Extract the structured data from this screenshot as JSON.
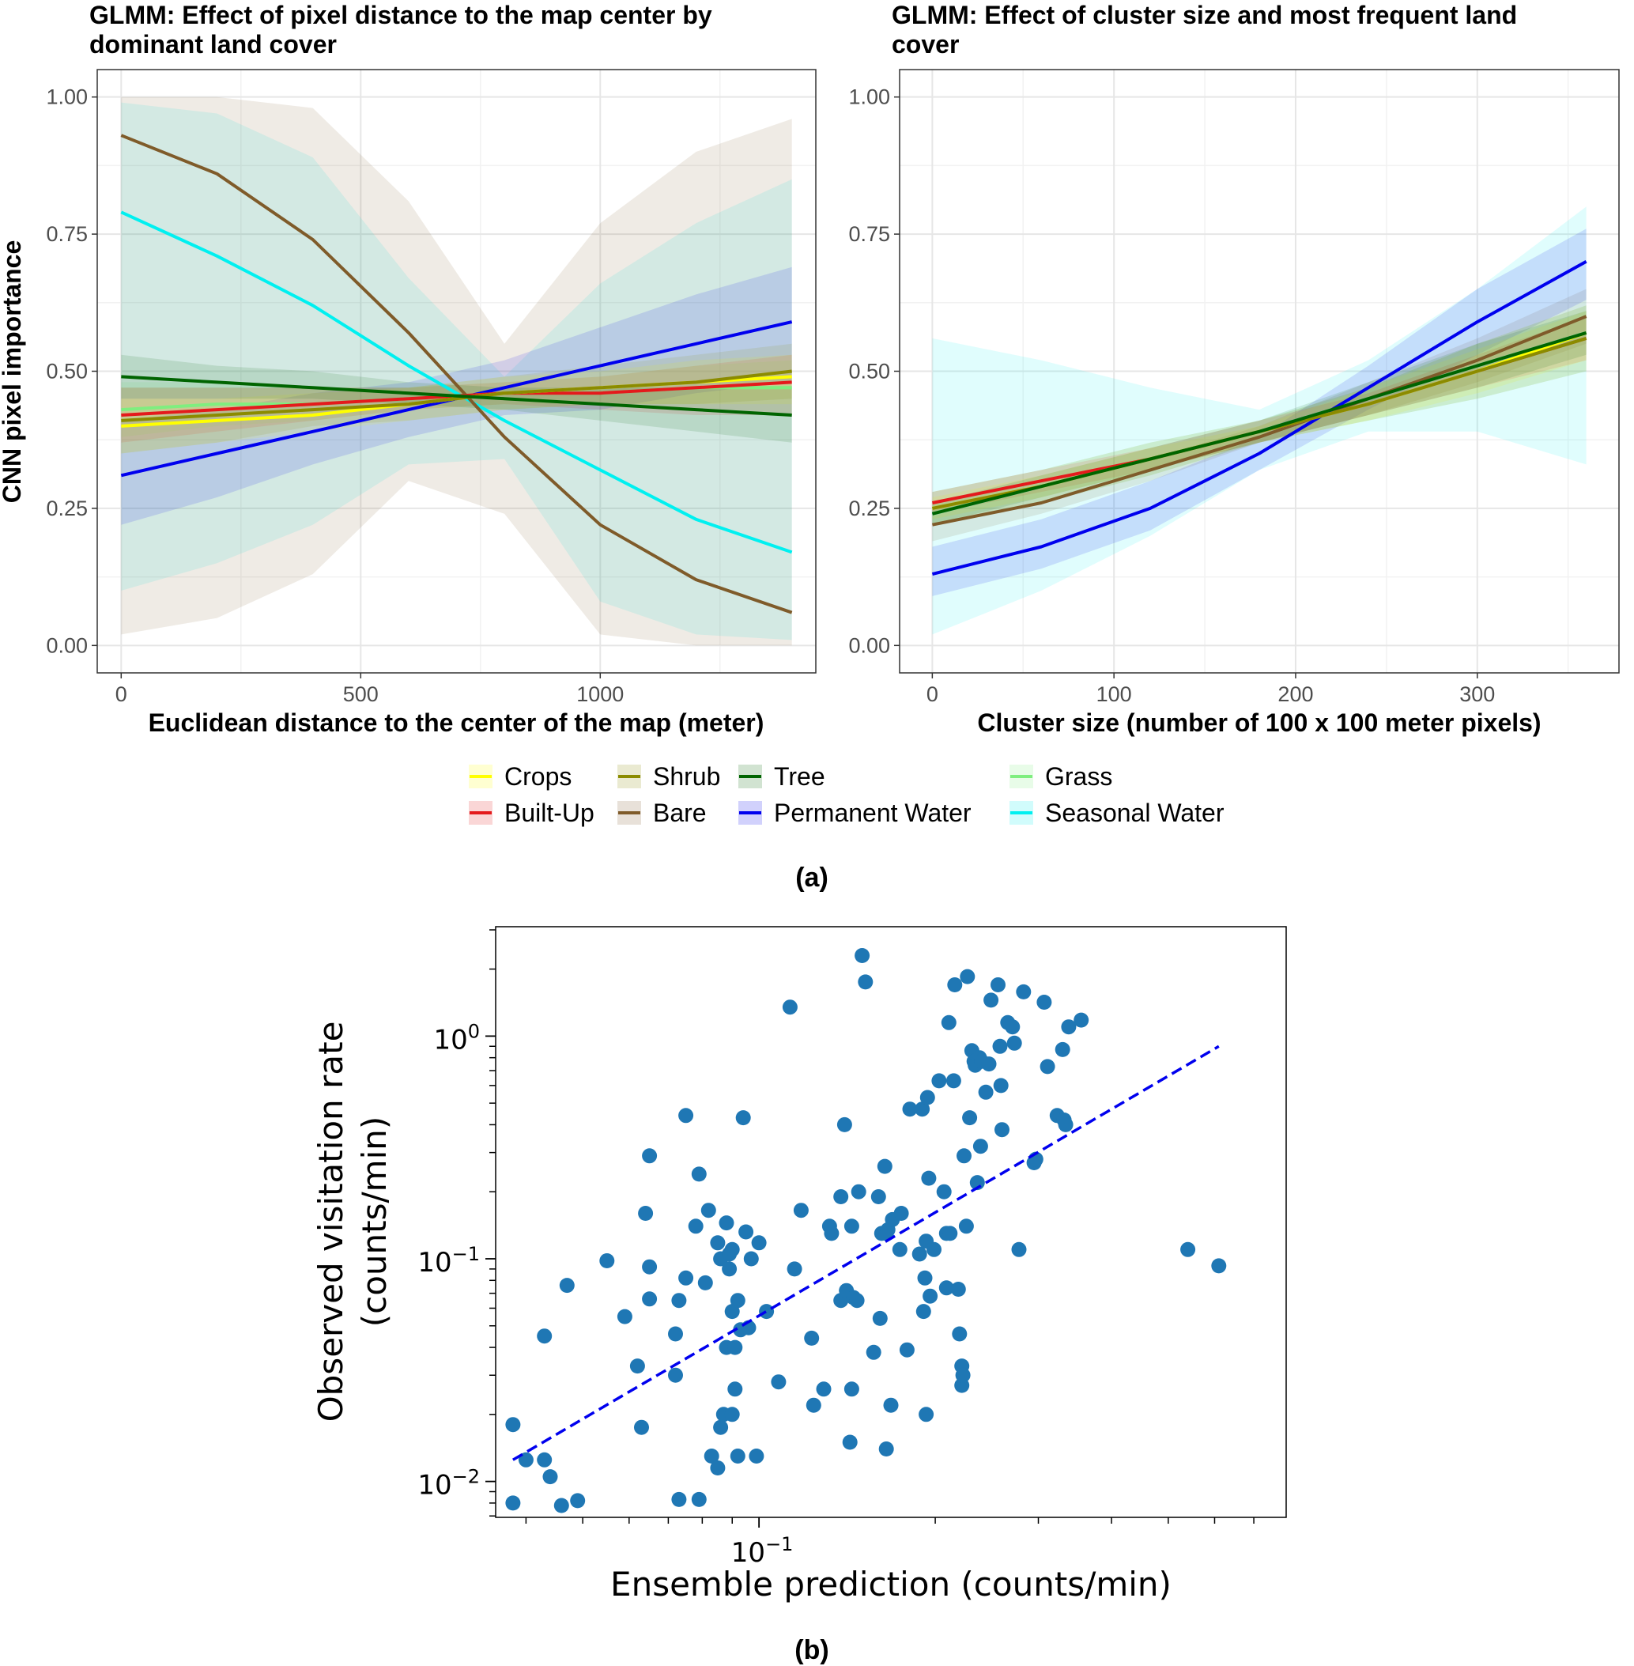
{
  "figure": {
    "caption_a": "(a)",
    "caption_b": "(b)",
    "legend": [
      {
        "name": "Crops",
        "color": "#ffff00"
      },
      {
        "name": "Shrub",
        "color": "#8b8b00"
      },
      {
        "name": "Tree",
        "color": "#006400"
      },
      {
        "name": "Grass",
        "color": "#7fee7f"
      },
      {
        "name": "Built-Up",
        "color": "#e41a1c"
      },
      {
        "name": "Bare",
        "color": "#7f5b2a"
      },
      {
        "name": "Permanent Water",
        "color": "#0000ee"
      },
      {
        "name": "Seasonal Water",
        "color": "#00f0f0"
      }
    ]
  },
  "chart_data": [
    {
      "type": "line",
      "title_line1": "GLMM: Effect of pixel distance to the map center by",
      "title_line2": "dominant land cover",
      "xlabel": "Euclidean distance to the center of the map (meter)",
      "ylabel": "CNN pixel importance",
      "xlim": [
        -50,
        1450
      ],
      "ylim": [
        -0.05,
        1.05
      ],
      "x_ticks": [
        0,
        500,
        1000
      ],
      "x_tick_labels": [
        "0",
        "500",
        "1000"
      ],
      "y_ticks": [
        0,
        0.25,
        0.5,
        0.75,
        1
      ],
      "y_tick_labels": [
        "0.00",
        "0.25",
        "0.50",
        "0.75",
        "1.00"
      ],
      "grid": true,
      "x": [
        0,
        200,
        400,
        600,
        800,
        1000,
        1200,
        1400
      ],
      "series": [
        {
          "name": "Crops",
          "values": [
            0.4,
            0.41,
            0.42,
            0.44,
            0.46,
            0.47,
            0.48,
            0.49
          ],
          "lower": [
            0.35,
            0.37,
            0.39,
            0.41,
            0.43,
            0.44,
            0.44,
            0.44
          ],
          "upper": [
            0.45,
            0.45,
            0.46,
            0.47,
            0.49,
            0.5,
            0.52,
            0.53
          ]
        },
        {
          "name": "Shrub",
          "values": [
            0.41,
            0.42,
            0.43,
            0.44,
            0.46,
            0.47,
            0.48,
            0.5
          ],
          "lower": [
            0.35,
            0.37,
            0.4,
            0.41,
            0.43,
            0.44,
            0.44,
            0.45
          ],
          "upper": [
            0.47,
            0.47,
            0.47,
            0.47,
            0.49,
            0.51,
            0.53,
            0.55
          ]
        },
        {
          "name": "Tree",
          "values": [
            0.49,
            0.48,
            0.47,
            0.46,
            0.45,
            0.44,
            0.43,
            0.42
          ],
          "lower": [
            0.45,
            0.45,
            0.45,
            0.44,
            0.43,
            0.41,
            0.39,
            0.37
          ],
          "upper": [
            0.53,
            0.51,
            0.5,
            0.48,
            0.47,
            0.47,
            0.47,
            0.47
          ]
        },
        {
          "name": "Grass",
          "values": [
            0.43,
            0.44,
            0.44,
            0.45,
            0.46,
            0.46,
            0.47,
            0.47
          ],
          "lower": [
            0.38,
            0.4,
            0.41,
            0.43,
            0.44,
            0.44,
            0.43,
            0.42
          ],
          "upper": [
            0.48,
            0.48,
            0.47,
            0.47,
            0.48,
            0.49,
            0.51,
            0.52
          ]
        },
        {
          "name": "Built-Up",
          "values": [
            0.42,
            0.43,
            0.44,
            0.45,
            0.46,
            0.46,
            0.47,
            0.48
          ],
          "lower": [
            0.37,
            0.39,
            0.41,
            0.43,
            0.44,
            0.43,
            0.42,
            0.42
          ],
          "upper": [
            0.47,
            0.47,
            0.47,
            0.47,
            0.48,
            0.49,
            0.51,
            0.53
          ]
        },
        {
          "name": "Bare",
          "values": [
            0.93,
            0.86,
            0.74,
            0.57,
            0.38,
            0.22,
            0.12,
            0.06
          ],
          "lower": [
            0.02,
            0.05,
            0.13,
            0.3,
            0.24,
            0.02,
            0.0,
            0.0
          ],
          "upper": [
            1.0,
            1.0,
            0.98,
            0.81,
            0.55,
            0.77,
            0.9,
            0.96
          ]
        },
        {
          "name": "Permanent Water",
          "values": [
            0.31,
            0.35,
            0.39,
            0.43,
            0.47,
            0.51,
            0.55,
            0.59
          ],
          "lower": [
            0.22,
            0.27,
            0.33,
            0.38,
            0.42,
            0.43,
            0.46,
            0.48
          ],
          "upper": [
            0.41,
            0.43,
            0.46,
            0.48,
            0.52,
            0.58,
            0.64,
            0.69
          ]
        },
        {
          "name": "Seasonal Water",
          "values": [
            0.79,
            0.71,
            0.62,
            0.51,
            0.41,
            0.32,
            0.23,
            0.17
          ],
          "lower": [
            0.1,
            0.15,
            0.22,
            0.33,
            0.34,
            0.08,
            0.02,
            0.01
          ],
          "upper": [
            0.99,
            0.97,
            0.89,
            0.67,
            0.49,
            0.66,
            0.77,
            0.85
          ]
        }
      ]
    },
    {
      "type": "line",
      "title_line1": "GLMM: Effect of cluster size and most frequent land",
      "title_line2": "cover",
      "xlabel": "Cluster size (number of 100 x 100 meter pixels)",
      "ylabel": "",
      "xlim": [
        -18,
        378
      ],
      "ylim": [
        -0.05,
        1.05
      ],
      "x_ticks": [
        0,
        100,
        200,
        300
      ],
      "x_tick_labels": [
        "0",
        "100",
        "200",
        "300"
      ],
      "y_ticks": [
        0,
        0.25,
        0.5,
        0.75,
        1
      ],
      "y_tick_labels": [
        "0.00",
        "0.25",
        "0.50",
        "0.75",
        "1.00"
      ],
      "grid": true,
      "x": [
        0,
        60,
        120,
        180,
        240,
        300,
        360
      ],
      "series": [
        {
          "name": "Crops",
          "values": [
            0.25,
            0.29,
            0.34,
            0.39,
            0.44,
            0.5,
            0.57
          ],
          "lower": [
            0.23,
            0.27,
            0.32,
            0.37,
            0.41,
            0.46,
            0.52
          ],
          "upper": [
            0.27,
            0.31,
            0.36,
            0.4,
            0.47,
            0.54,
            0.61
          ]
        },
        {
          "name": "Shrub",
          "values": [
            0.25,
            0.29,
            0.34,
            0.39,
            0.44,
            0.5,
            0.56
          ],
          "lower": [
            0.22,
            0.26,
            0.31,
            0.37,
            0.41,
            0.45,
            0.5
          ],
          "upper": [
            0.28,
            0.32,
            0.37,
            0.41,
            0.47,
            0.55,
            0.62
          ]
        },
        {
          "name": "Tree",
          "values": [
            0.24,
            0.29,
            0.34,
            0.39,
            0.45,
            0.51,
            0.57
          ],
          "lower": [
            0.22,
            0.27,
            0.32,
            0.37,
            0.42,
            0.47,
            0.53
          ],
          "upper": [
            0.26,
            0.31,
            0.36,
            0.41,
            0.48,
            0.55,
            0.61
          ]
        },
        {
          "name": "Grass",
          "values": [
            0.25,
            0.29,
            0.34,
            0.39,
            0.44,
            0.5,
            0.56
          ],
          "lower": [
            0.22,
            0.26,
            0.31,
            0.37,
            0.41,
            0.45,
            0.5
          ],
          "upper": [
            0.28,
            0.32,
            0.37,
            0.41,
            0.47,
            0.55,
            0.62
          ]
        },
        {
          "name": "Built-Up",
          "values": [
            0.26,
            0.3,
            0.34,
            0.39,
            0.44,
            0.5,
            0.56
          ],
          "lower": [
            0.24,
            0.28,
            0.32,
            0.37,
            0.42,
            0.47,
            0.52
          ],
          "upper": [
            0.28,
            0.32,
            0.36,
            0.41,
            0.46,
            0.53,
            0.6
          ]
        },
        {
          "name": "Bare",
          "values": [
            0.22,
            0.26,
            0.32,
            0.38,
            0.45,
            0.52,
            0.6
          ],
          "lower": [
            0.19,
            0.24,
            0.3,
            0.37,
            0.42,
            0.48,
            0.55
          ],
          "upper": [
            0.25,
            0.29,
            0.34,
            0.4,
            0.48,
            0.56,
            0.65
          ]
        },
        {
          "name": "Permanent Water",
          "values": [
            0.13,
            0.18,
            0.25,
            0.35,
            0.47,
            0.59,
            0.7
          ],
          "lower": [
            0.09,
            0.14,
            0.21,
            0.32,
            0.43,
            0.53,
            0.63
          ],
          "upper": [
            0.18,
            0.23,
            0.3,
            0.38,
            0.51,
            0.65,
            0.76
          ]
        },
        {
          "name": "Seasonal Water",
          "values": [
            0.24,
            0.29,
            0.34,
            0.39,
            0.45,
            0.51,
            0.57
          ],
          "lower": [
            0.02,
            0.1,
            0.2,
            0.32,
            0.39,
            0.39,
            0.33
          ],
          "upper": [
            0.56,
            0.52,
            0.47,
            0.43,
            0.52,
            0.65,
            0.8
          ]
        }
      ]
    },
    {
      "type": "scatter",
      "xlabel": "Ensemble prediction (counts/min)",
      "ylabel_line1": "Observed visitation rate",
      "ylabel_line2": "(counts/min)",
      "x_scale": "log",
      "y_scale": "log",
      "xlim": [
        0.0355,
        0.795
      ],
      "ylim": [
        0.0069,
        3.1
      ],
      "x_ticks": [
        0.1
      ],
      "x_tick_labels": [
        "10^−1"
      ],
      "y_ticks": [
        0.01,
        0.1,
        1
      ],
      "y_tick_labels": [
        "10^−2",
        "10^−1",
        "10^0"
      ],
      "grid": false,
      "color": "#1f77b4",
      "fit_line": {
        "x": [
          0.038,
          0.61
        ],
        "y": [
          0.0125,
          0.9
        ],
        "color": "#0000ee",
        "style": "dashed"
      },
      "points": [
        [
          0.038,
          0.018
        ],
        [
          0.038,
          0.008
        ],
        [
          0.04,
          0.0125
        ],
        [
          0.043,
          0.045
        ],
        [
          0.043,
          0.0125
        ],
        [
          0.044,
          0.0105
        ],
        [
          0.046,
          0.0078
        ],
        [
          0.047,
          0.076
        ],
        [
          0.049,
          0.0082
        ],
        [
          0.055,
          0.098
        ],
        [
          0.059,
          0.055
        ],
        [
          0.062,
          0.033
        ],
        [
          0.063,
          0.0175
        ],
        [
          0.064,
          0.16
        ],
        [
          0.065,
          0.29
        ],
        [
          0.065,
          0.092
        ],
        [
          0.065,
          0.066
        ],
        [
          0.072,
          0.03
        ],
        [
          0.072,
          0.046
        ],
        [
          0.073,
          0.0083
        ],
        [
          0.073,
          0.065
        ],
        [
          0.075,
          0.44
        ],
        [
          0.075,
          0.082
        ],
        [
          0.078,
          0.14
        ],
        [
          0.079,
          0.24
        ],
        [
          0.079,
          0.0083
        ],
        [
          0.081,
          0.078
        ],
        [
          0.082,
          0.165
        ],
        [
          0.083,
          0.013
        ],
        [
          0.085,
          0.118
        ],
        [
          0.085,
          0.0115
        ],
        [
          0.086,
          0.0175
        ],
        [
          0.086,
          0.1
        ],
        [
          0.087,
          0.02
        ],
        [
          0.088,
          0.04
        ],
        [
          0.088,
          0.145
        ],
        [
          0.089,
          0.105
        ],
        [
          0.089,
          0.09
        ],
        [
          0.09,
          0.11
        ],
        [
          0.09,
          0.02
        ],
        [
          0.09,
          0.058
        ],
        [
          0.091,
          0.026
        ],
        [
          0.091,
          0.04
        ],
        [
          0.092,
          0.013
        ],
        [
          0.092,
          0.065
        ],
        [
          0.093,
          0.048
        ],
        [
          0.094,
          0.43
        ],
        [
          0.095,
          0.132
        ],
        [
          0.096,
          0.049
        ],
        [
          0.097,
          0.1
        ],
        [
          0.099,
          0.013
        ],
        [
          0.1,
          0.118
        ],
        [
          0.103,
          0.058
        ],
        [
          0.108,
          0.028
        ],
        [
          0.113,
          1.35
        ],
        [
          0.115,
          0.09
        ],
        [
          0.118,
          0.165
        ],
        [
          0.123,
          0.044
        ],
        [
          0.124,
          0.022
        ],
        [
          0.129,
          0.026
        ],
        [
          0.132,
          0.14
        ],
        [
          0.133,
          0.13
        ],
        [
          0.138,
          0.19
        ],
        [
          0.138,
          0.065
        ],
        [
          0.14,
          0.4
        ],
        [
          0.141,
          0.072
        ],
        [
          0.143,
          0.015
        ],
        [
          0.144,
          0.026
        ],
        [
          0.144,
          0.14
        ],
        [
          0.145,
          0.067
        ],
        [
          0.147,
          0.065
        ],
        [
          0.148,
          0.2
        ],
        [
          0.15,
          2.3
        ],
        [
          0.152,
          1.75
        ],
        [
          0.157,
          0.038
        ],
        [
          0.16,
          0.19
        ],
        [
          0.161,
          0.054
        ],
        [
          0.162,
          0.13
        ],
        [
          0.164,
          0.26
        ],
        [
          0.165,
          0.014
        ],
        [
          0.165,
          0.13
        ],
        [
          0.166,
          0.135
        ],
        [
          0.168,
          0.022
        ],
        [
          0.169,
          0.15
        ],
        [
          0.174,
          0.11
        ],
        [
          0.175,
          0.16
        ],
        [
          0.179,
          0.039
        ],
        [
          0.181,
          0.47
        ],
        [
          0.188,
          0.105
        ],
        [
          0.19,
          0.47
        ],
        [
          0.191,
          0.058
        ],
        [
          0.192,
          0.082
        ],
        [
          0.193,
          0.02
        ],
        [
          0.193,
          0.12
        ],
        [
          0.194,
          0.53
        ],
        [
          0.195,
          0.23
        ],
        [
          0.196,
          0.068
        ],
        [
          0.199,
          0.11
        ],
        [
          0.203,
          0.63
        ],
        [
          0.207,
          0.2
        ],
        [
          0.209,
          0.074
        ],
        [
          0.209,
          0.13
        ],
        [
          0.211,
          1.15
        ],
        [
          0.212,
          0.13
        ],
        [
          0.215,
          0.63
        ],
        [
          0.216,
          1.7
        ],
        [
          0.219,
          0.073
        ],
        [
          0.22,
          0.046
        ],
        [
          0.222,
          0.027
        ],
        [
          0.222,
          0.033
        ],
        [
          0.223,
          0.03
        ],
        [
          0.224,
          0.29
        ],
        [
          0.226,
          0.14
        ],
        [
          0.227,
          1.85
        ],
        [
          0.229,
          0.43
        ],
        [
          0.231,
          0.86
        ],
        [
          0.233,
          0.77
        ],
        [
          0.234,
          0.74
        ],
        [
          0.236,
          0.22
        ],
        [
          0.238,
          0.8
        ],
        [
          0.239,
          0.32
        ],
        [
          0.24,
          0.77
        ],
        [
          0.244,
          0.56
        ],
        [
          0.247,
          0.75
        ],
        [
          0.249,
          1.45
        ],
        [
          0.256,
          1.7
        ],
        [
          0.258,
          0.9
        ],
        [
          0.259,
          0.6
        ],
        [
          0.26,
          0.38
        ],
        [
          0.266,
          1.15
        ],
        [
          0.271,
          1.1
        ],
        [
          0.273,
          0.93
        ],
        [
          0.278,
          0.11
        ],
        [
          0.283,
          1.58
        ],
        [
          0.295,
          0.27
        ],
        [
          0.297,
          0.28
        ],
        [
          0.307,
          1.42
        ],
        [
          0.311,
          0.73
        ],
        [
          0.323,
          0.44
        ],
        [
          0.33,
          0.87
        ],
        [
          0.332,
          0.42
        ],
        [
          0.334,
          0.4
        ],
        [
          0.338,
          1.1
        ],
        [
          0.355,
          1.18
        ],
        [
          0.54,
          0.11
        ],
        [
          0.61,
          0.093
        ]
      ]
    }
  ]
}
